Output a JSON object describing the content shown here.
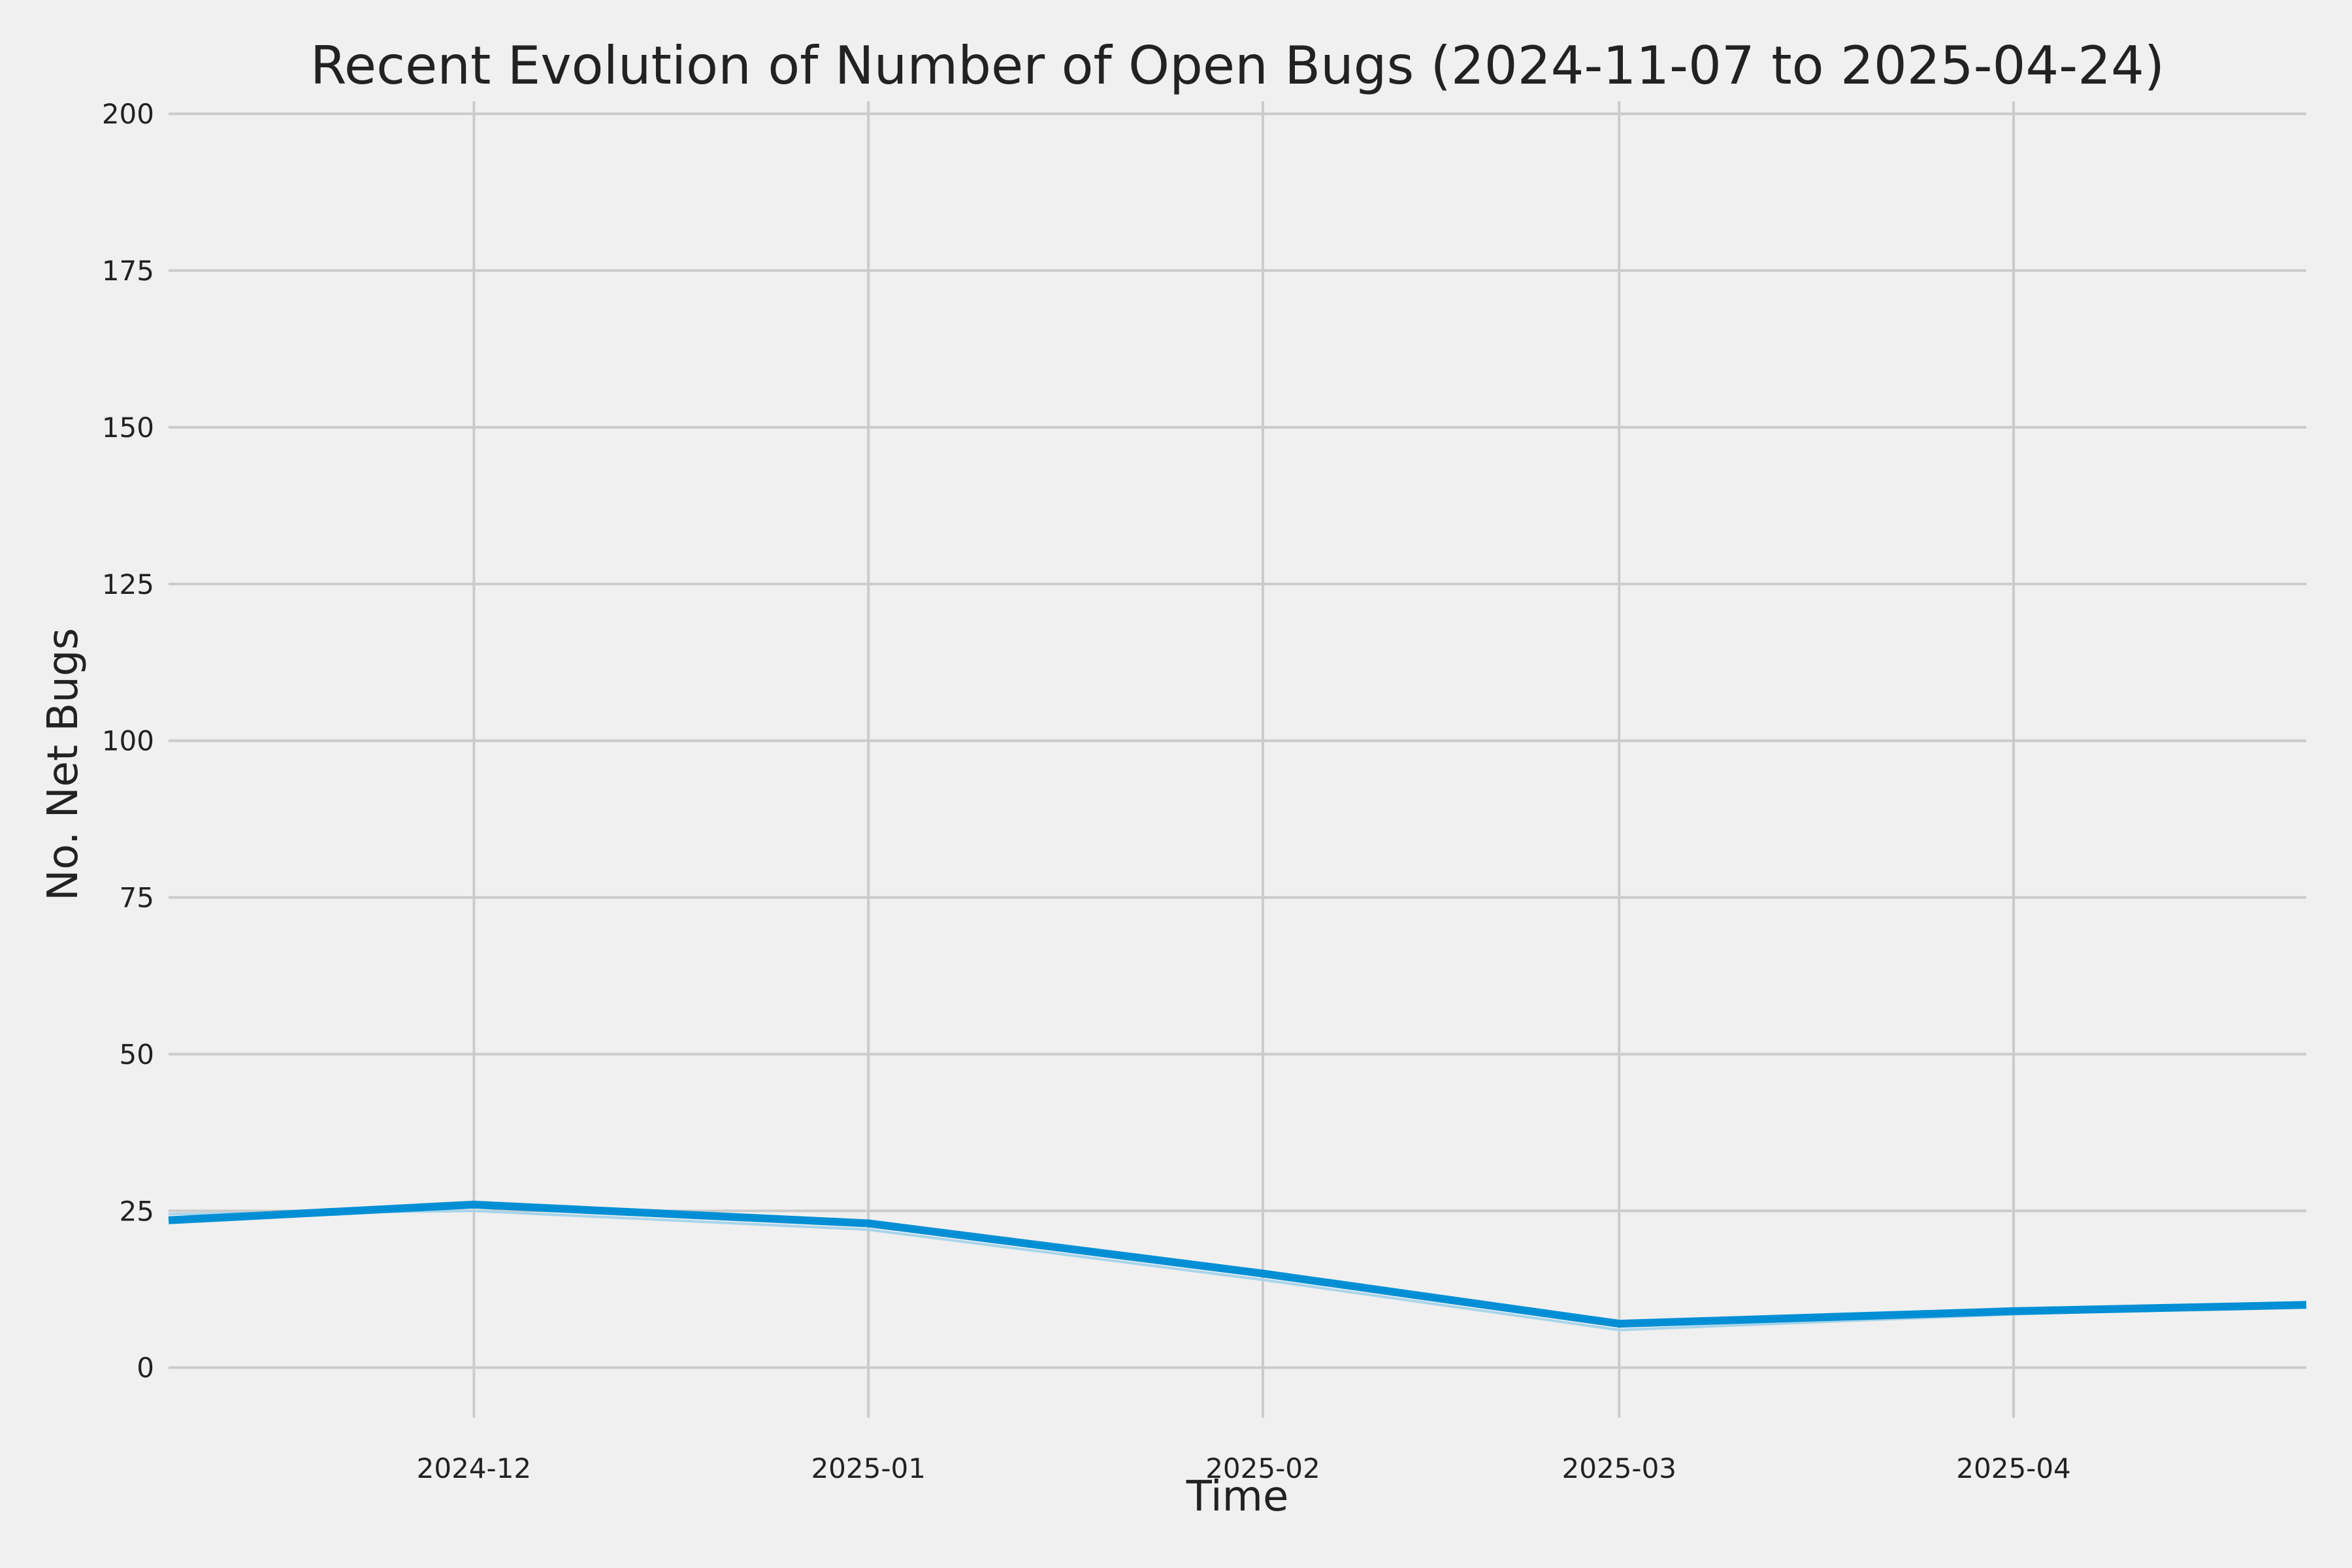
{
  "chart_data": {
    "type": "line",
    "title": "Recent Evolution of Number of Open Bugs (2024-11-07 to 2025-04-24)",
    "xlabel": "Time",
    "ylabel": "No. Net Bugs",
    "xlim": [
      "2024-11-07",
      "2025-04-24"
    ],
    "ylim": [
      -8,
      202
    ],
    "yticks": [
      0,
      25,
      50,
      75,
      100,
      125,
      150,
      175,
      200
    ],
    "xticks": [
      {
        "date": "2024-12-01",
        "label": "2024-12"
      },
      {
        "date": "2025-01-01",
        "label": "2025-01"
      },
      {
        "date": "2025-02-01",
        "label": "2025-02"
      },
      {
        "date": "2025-03-01",
        "label": "2025-03"
      },
      {
        "date": "2025-04-01",
        "label": "2025-04"
      }
    ],
    "grid": true,
    "legend": "none",
    "series": [
      {
        "color": "#008fd5",
        "x": [
          "2024-11-07",
          "2024-12-01",
          "2025-01-01",
          "2025-02-01",
          "2025-03-01",
          "2025-04-01",
          "2025-04-24"
        ],
        "y": [
          23.5,
          26,
          23,
          15,
          7,
          9,
          10
        ]
      },
      {
        "color": "#a8d4ea",
        "x": [
          "2024-11-07",
          "2024-12-01",
          "2025-01-01",
          "2025-02-01",
          "2025-03-01",
          "2025-04-01",
          "2025-04-24"
        ],
        "y": [
          24.5,
          25,
          22,
          14,
          6,
          8.5,
          10
        ]
      }
    ]
  }
}
